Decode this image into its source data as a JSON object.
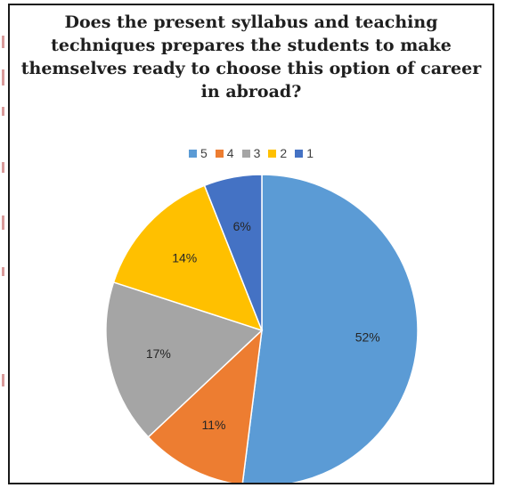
{
  "chart_data": {
    "type": "pie",
    "title": "Does the present syllabus and teaching techniques prepares the students to make themselves ready to choose this option of career in abroad?",
    "title_lines": [
      "Does the present syllabus and teaching",
      "techniques prepares the students to make",
      "themselves ready to choose this option of career",
      "in abroad?"
    ],
    "legend_position": "top",
    "slices": [
      {
        "legend": "5",
        "value": 52,
        "label": "52%",
        "color": "#5b9bd5"
      },
      {
        "legend": "4",
        "value": 11,
        "label": "11%",
        "color": "#ed7d31"
      },
      {
        "legend": "3",
        "value": 17,
        "label": "17%",
        "color": "#a5a5a5"
      },
      {
        "legend": "2",
        "value": 14,
        "label": "14%",
        "color": "#ffc000"
      },
      {
        "legend": "1",
        "value": 6,
        "label": "6%",
        "color": "#4472c4"
      }
    ]
  }
}
